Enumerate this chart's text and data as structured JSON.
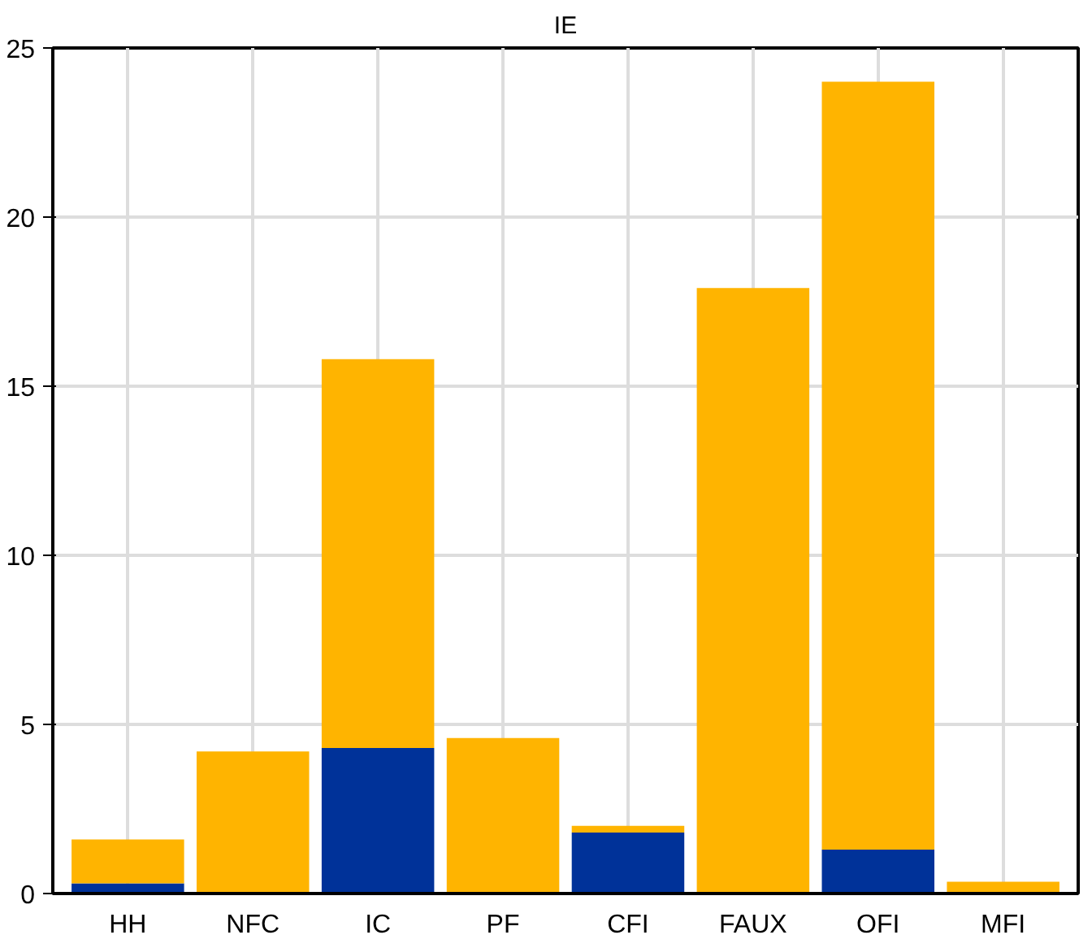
{
  "chart_data": {
    "type": "bar",
    "title": "IE",
    "stacked": true,
    "categories": [
      "HH",
      "NFC",
      "IC",
      "PF",
      "CFI",
      "FAUX",
      "OFI",
      "MFI"
    ],
    "series": [
      {
        "color": "#003299",
        "values": [
          0.3,
          0,
          4.3,
          null,
          1.8,
          0,
          1.3,
          0
        ]
      },
      {
        "color": "#ffb400",
        "values": [
          1.3,
          4.2,
          11.5,
          4.6,
          0.2,
          17.9,
          22.7,
          0.35
        ]
      }
    ],
    "ylim": [
      0,
      25
    ],
    "yticks": [
      0,
      5,
      10,
      15,
      20,
      25
    ],
    "grid": true
  }
}
